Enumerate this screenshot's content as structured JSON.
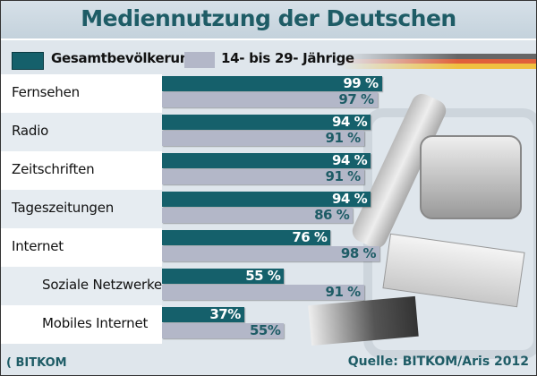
{
  "chart_data": {
    "type": "bar",
    "orientation": "horizontal",
    "title": "Mediennutzung der Deutschen",
    "categories": [
      "Fernsehen",
      "Radio",
      "Zeitschriften",
      "Tageszeitungen",
      "Internet",
      "Soziale Netzwerke",
      "Mobiles Internet"
    ],
    "series": [
      {
        "name": "Gesamtbevölkerung",
        "color": "#15606b",
        "values": [
          99,
          94,
          94,
          94,
          76,
          55,
          37
        ],
        "labels": [
          "99 %",
          "94 %",
          "94 %",
          "94 %",
          "76 %",
          "55 %",
          "37%"
        ]
      },
      {
        "name": "14- bis 29- Jährige",
        "color": "#b3b7c8",
        "values": [
          97,
          91,
          91,
          86,
          98,
          91,
          55
        ],
        "labels": [
          "97 %",
          "91 %",
          "91 %",
          "86 %",
          "98 %",
          "91 %",
          "55%"
        ]
      }
    ],
    "unit": "%",
    "xlim": [
      0,
      100
    ],
    "legend": "top-left",
    "grid": false
  },
  "footer": {
    "source": "Quelle: BITKOM/Aris 2012",
    "logo": "BITKOM"
  }
}
